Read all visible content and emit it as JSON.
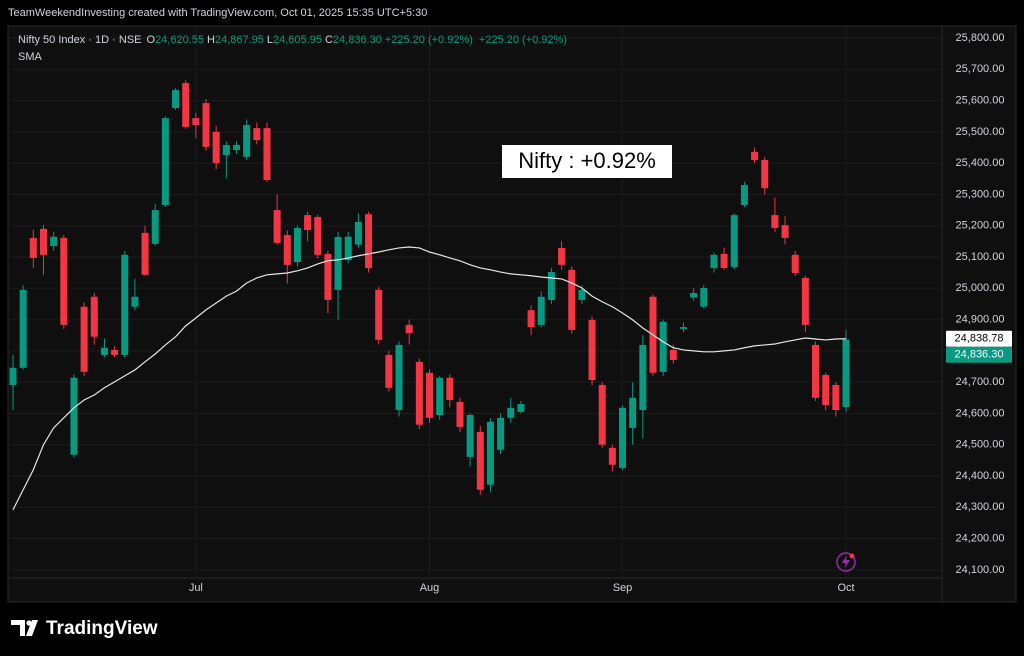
{
  "header": {
    "credit": "TeamWeekendInvesting created with TradingView.com, Oct 01, 2025 15:35 UTC+5:30"
  },
  "brand": "TradingView",
  "chart_data": {
    "type": "candlestick",
    "symbol": "Nifty 50 Index · 1D · NSE",
    "ohlc_legend": [
      {
        "label": "O",
        "value": "24,620.55"
      },
      {
        "label": "H",
        "value": "24,867.95"
      },
      {
        "label": "L",
        "value": "24,605.95"
      },
      {
        "label": "C",
        "value": "24,836.30"
      }
    ],
    "changes": [
      "+225.20 (+0.92%)",
      "+225.20 (+0.92%)"
    ],
    "annotation": "Nifty : +0.92%",
    "categories": [
      null,
      null,
      null,
      null,
      null,
      null,
      null,
      null,
      null,
      null,
      null,
      null,
      null,
      null,
      null,
      null,
      null,
      null,
      "Jul",
      null,
      null,
      null,
      null,
      null,
      null,
      null,
      null,
      null,
      null,
      null,
      null,
      null,
      null,
      null,
      null,
      null,
      null,
      null,
      null,
      null,
      null,
      "Aug",
      null,
      null,
      null,
      null,
      null,
      null,
      null,
      null,
      null,
      null,
      null,
      null,
      null,
      null,
      null,
      null,
      null,
      null,
      "Sep",
      null,
      null,
      null,
      null,
      null,
      null,
      null,
      null,
      null,
      null,
      null,
      null,
      null,
      null,
      null,
      null,
      null,
      null,
      null,
      null,
      null,
      "Oct"
    ],
    "series": [
      {
        "up_color": "#089981",
        "down_color": "#f23645",
        "last_label": "24,836.30",
        "open": [
          24691,
          24746,
          25161,
          25190,
          25135,
          25161,
          24468,
          24941,
          24973,
          24787,
          24803,
          24787,
          24941,
          25177,
          25142,
          25266,
          25576,
          25656,
          25544,
          25592,
          25500,
          25426,
          25442,
          25420,
          25512,
          25512,
          25250,
          25170,
          25084,
          25234,
          25228,
          25110,
          24995,
          25090,
          25140,
          25237,
          24995,
          24787,
          24611,
          24883,
          24765,
          24730,
          24595,
          24714,
          24637,
          24461,
          24541,
          24372,
          24484,
          24586,
          24605,
          24930,
          24883,
          24963,
          25129,
          25059,
          24963,
          24899,
          24691,
          24490,
          24426,
          24554,
          24611,
          24973,
          24733,
          24803,
          24870,
          24970,
          24941,
          25065,
          25110,
          25068,
          25266,
          25436,
          25410,
          25234,
          25202,
          25107,
          25033,
          24819,
          24723,
          24691,
          24620.55
        ],
        "high": [
          24787,
          25010,
          25187,
          25203,
          25180,
          25170,
          24725,
          24955,
          24985,
          24840,
          24815,
          25120,
          25030,
          25200,
          25270,
          25550,
          25640,
          25665,
          25560,
          25605,
          25520,
          25470,
          25470,
          25540,
          25530,
          25530,
          25300,
          25185,
          25200,
          25245,
          25235,
          25120,
          25180,
          25180,
          25240,
          25245,
          25005,
          24800,
          24830,
          24900,
          24775,
          24740,
          24720,
          24725,
          24650,
          24600,
          24560,
          24585,
          24600,
          24650,
          24640,
          24945,
          24990,
          25065,
          25150,
          25070,
          25010,
          24910,
          24700,
          24500,
          24625,
          24700,
          24850,
          24980,
          24900,
          24820,
          24890,
          25000,
          25010,
          25115,
          25130,
          25240,
          25340,
          25450,
          25420,
          25290,
          25230,
          25120,
          25040,
          24830,
          24730,
          24700,
          24867.95
        ],
        "low": [
          24611,
          24740,
          25065,
          25043,
          25120,
          24870,
          24460,
          24720,
          24820,
          24780,
          24780,
          24780,
          24930,
          25040,
          25135,
          25260,
          25570,
          25510,
          25480,
          25440,
          25380,
          25350,
          25430,
          25410,
          25460,
          25340,
          25140,
          25015,
          25070,
          25150,
          25095,
          24920,
          24900,
          25080,
          25130,
          25050,
          24820,
          24670,
          24590,
          24820,
          24550,
          24570,
          24580,
          24620,
          24540,
          24430,
          24340,
          24350,
          24470,
          24570,
          24600,
          24850,
          24875,
          24950,
          25060,
          24855,
          24950,
          24690,
          24490,
          24415,
          24420,
          24500,
          24520,
          24720,
          24720,
          24760,
          24860,
          24960,
          24935,
          25050,
          25060,
          25060,
          25260,
          25400,
          25300,
          25180,
          25140,
          25040,
          24860,
          24640,
          24610,
          24590,
          24605.95
        ],
        "close": [
          24746,
          24995,
          25097,
          25107,
          25165,
          24883,
          24714,
          24733,
          24845,
          24810,
          24787,
          25107,
          24973,
          25043,
          25250,
          25544,
          25634,
          25516,
          25522,
          25452,
          25400,
          25458,
          25458,
          25522,
          25474,
          25346,
          25145,
          25075,
          25193,
          25186,
          25107,
          24963,
          25164,
          25165,
          25212,
          25065,
          24835,
          24682,
          24819,
          24857,
          24564,
          24586,
          24714,
          24643,
          24557,
          24595,
          24356,
          24573,
          24586,
          24618,
          24630,
          24876,
          24973,
          25052,
          25075,
          24867,
          24995,
          24707,
          24500,
          24436,
          24618,
          24650,
          24819,
          24730,
          24893,
          24771,
          24876,
          24985,
          25001,
          25107,
          25065,
          25234,
          25330,
          25410,
          25320,
          25193,
          25161,
          25049,
          24883,
          24650,
          24627,
          24611,
          24836.3
        ]
      },
      {
        "name": "SMA",
        "type": "line",
        "color": "#e6e6e6",
        "last_label": "24,838.78",
        "values": [
          24292,
          24356,
          24420,
          24500,
          24554,
          24586,
          24618,
          24643,
          24659,
          24682,
          24701,
          24720,
          24739,
          24765,
          24790,
          24819,
          24845,
          24880,
          24905,
          24931,
          24953,
          24975,
          24991,
          25017,
          25033,
          25043,
          25046,
          25049,
          25056,
          25065,
          25078,
          25088,
          25091,
          25097,
          25104,
          25110,
          25116,
          25123,
          25129,
          25132,
          25129,
          25116,
          25107,
          25097,
          25088,
          25075,
          25065,
          25059,
          25052,
          25046,
          25043,
          25040,
          25036,
          25033,
          25030,
          25017,
          25001,
          24975,
          24957,
          24941,
          24921,
          24899,
          24873,
          24851,
          24829,
          24810,
          24803,
          24800,
          24797,
          24797,
          24800,
          24803,
          24810,
          24816,
          24819,
          24822,
          24829,
          24835,
          24841,
          24838,
          24835,
          24838,
          24838.78
        ]
      }
    ],
    "ylim": [
      24074,
      25832
    ],
    "yticks": [
      {
        "value": 24100,
        "label": "24,100.00"
      },
      {
        "value": 24200,
        "label": "24,200.00"
      },
      {
        "value": 24300,
        "label": "24,300.00"
      },
      {
        "value": 24400,
        "label": "24,400.00"
      },
      {
        "value": 24500,
        "label": "24,500.00"
      },
      {
        "value": 24600,
        "label": "24,600.00"
      },
      {
        "value": 24700,
        "label": "24,700.00"
      },
      {
        "value": 24800,
        "label": "24,800.00"
      },
      {
        "value": 24900,
        "label": "24,900.00"
      },
      {
        "value": 25000,
        "label": "25,000.00"
      },
      {
        "value": 25100,
        "label": "25,100.00"
      },
      {
        "value": 25200,
        "label": "25,200.00"
      },
      {
        "value": 25300,
        "label": "25,300.00"
      },
      {
        "value": 25400,
        "label": "25,400.00"
      },
      {
        "value": 25500,
        "label": "25,500.00"
      },
      {
        "value": 25600,
        "label": "25,600.00"
      },
      {
        "value": 25700,
        "label": "25,700.00"
      },
      {
        "value": 25800,
        "label": "25,800.00"
      }
    ],
    "grid": true
  }
}
